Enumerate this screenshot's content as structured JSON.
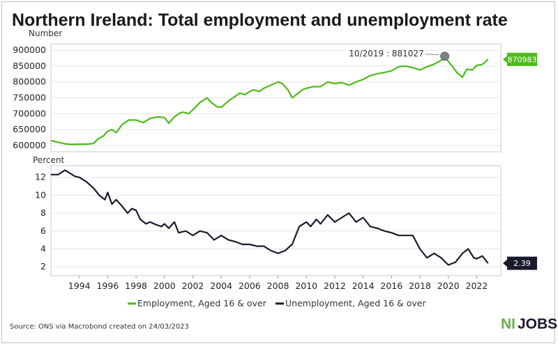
{
  "chart_data": {
    "type": "line",
    "title": "Northern Ireland: Total employment and unemployment rate",
    "source": "Source: ONS via Macrobond created on 24/03/2023",
    "brand": {
      "ni": "NI",
      "jobs": "JOBS",
      "ni_color": "#6ab04c",
      "jobs_color": "#1a1a2e"
    },
    "x_ticks": [
      "1994",
      "1996",
      "1998",
      "2000",
      "2002",
      "2004",
      "2006",
      "2008",
      "2010",
      "2012",
      "2014",
      "2016",
      "2018",
      "2020",
      "2022"
    ],
    "x_range": [
      1992.0,
      2023.7
    ],
    "panels": [
      {
        "unit_label": "Number",
        "ylim": [
          580000,
          920000
        ],
        "yticks": [
          "600000",
          "650000",
          "700000",
          "750000",
          "800000",
          "850000",
          "900000"
        ],
        "grid": true,
        "series": [
          {
            "name": "Employment, Aged 16 & over",
            "color": "#4cbb17",
            "x": [
              1992.0,
              1992.5,
              1993.0,
              1993.5,
              1994.0,
              1994.5,
              1995.0,
              1995.3,
              1995.7,
              1996.0,
              1996.3,
              1996.6,
              1997.0,
              1997.5,
              1998.0,
              1998.5,
              1999.0,
              1999.5,
              2000.0,
              2000.3,
              2000.7,
              2001.0,
              2001.3,
              2001.7,
              2002.0,
              2002.5,
              2003.0,
              2003.3,
              2003.7,
              2004.0,
              2004.5,
              2005.0,
              2005.3,
              2005.7,
              2006.0,
              2006.3,
              2006.7,
              2007.0,
              2007.5,
              2008.0,
              2008.3,
              2008.7,
              2009.0,
              2009.3,
              2009.7,
              2010.0,
              2010.5,
              2011.0,
              2011.5,
              2012.0,
              2012.5,
              2013.0,
              2013.5,
              2014.0,
              2014.5,
              2015.0,
              2015.5,
              2016.0,
              2016.5,
              2017.0,
              2017.5,
              2018.0,
              2018.5,
              2019.0,
              2019.5,
              2019.75,
              2020.0,
              2020.3,
              2020.6,
              2021.0,
              2021.3,
              2021.7,
              2022.0,
              2022.4,
              2022.8
            ],
            "values": [
              615000,
              610000,
              605000,
              603000,
              604000,
              604000,
              606000,
              620000,
              630000,
              645000,
              650000,
              640000,
              665000,
              680000,
              680000,
              672000,
              685000,
              690000,
              688000,
              670000,
              690000,
              700000,
              705000,
              700000,
              712000,
              735000,
              750000,
              735000,
              722000,
              720000,
              740000,
              755000,
              765000,
              760000,
              770000,
              775000,
              770000,
              780000,
              790000,
              800000,
              795000,
              775000,
              750000,
              760000,
              775000,
              780000,
              785000,
              785000,
              800000,
              795000,
              798000,
              790000,
              800000,
              808000,
              820000,
              826000,
              830000,
              835000,
              848000,
              850000,
              845000,
              838000,
              848000,
              856000,
              868000,
              881027,
              865000,
              848000,
              830000,
              815000,
              840000,
              838000,
              852000,
              855000,
              870983
            ]
          }
        ],
        "end_badge": {
          "text": "870983",
          "color": "#4cbb17"
        },
        "annotation": {
          "text": "10/2019 : 881027",
          "x": 2019.75,
          "y": 881027
        }
      },
      {
        "unit_label": "Percent",
        "ylim": [
          1.0,
          13.3
        ],
        "yticks": [
          "2",
          "4",
          "6",
          "8",
          "10",
          "12"
        ],
        "grid": true,
        "series": [
          {
            "name": "Unemployment, Aged 16 & over",
            "color": "#1a1a2e",
            "x": [
              1992.0,
              1992.5,
              1993.0,
              1993.3,
              1993.7,
              1994.0,
              1994.5,
              1995.0,
              1995.4,
              1995.8,
              1996.0,
              1996.3,
              1996.6,
              1997.0,
              1997.4,
              1997.7,
              1998.0,
              1998.3,
              1998.7,
              1999.0,
              1999.4,
              1999.8,
              2000.0,
              2000.3,
              2000.7,
              2001.0,
              2001.5,
              2002.0,
              2002.5,
              2003.0,
              2003.5,
              2004.0,
              2004.5,
              2005.0,
              2005.5,
              2006.0,
              2006.5,
              2007.0,
              2007.5,
              2008.0,
              2008.5,
              2009.0,
              2009.5,
              2010.0,
              2010.3,
              2010.7,
              2011.0,
              2011.5,
              2012.0,
              2012.5,
              2013.0,
              2013.5,
              2014.0,
              2014.5,
              2015.0,
              2015.5,
              2016.0,
              2016.5,
              2017.0,
              2017.5,
              2018.0,
              2018.5,
              2019.0,
              2019.5,
              2020.0,
              2020.5,
              2021.0,
              2021.4,
              2021.8,
              2022.0,
              2022.4,
              2022.8
            ],
            "values": [
              12.3,
              12.3,
              12.8,
              12.5,
              12.1,
              12.0,
              11.5,
              10.8,
              10.0,
              9.5,
              10.3,
              9.0,
              9.5,
              8.8,
              8.0,
              8.5,
              8.3,
              7.3,
              6.8,
              7.0,
              6.7,
              6.5,
              6.8,
              6.3,
              7.0,
              5.8,
              6.0,
              5.5,
              6.0,
              5.8,
              5.0,
              5.5,
              5.0,
              4.8,
              4.5,
              4.5,
              4.3,
              4.3,
              3.8,
              3.5,
              3.8,
              4.5,
              6.5,
              7.0,
              6.5,
              7.3,
              6.8,
              7.8,
              7.0,
              7.5,
              8.0,
              7.0,
              7.5,
              6.5,
              6.3,
              6.0,
              5.8,
              5.5,
              5.5,
              5.5,
              4.0,
              3.0,
              3.5,
              3.0,
              2.2,
              2.5,
              3.5,
              4.0,
              3.0,
              2.9,
              3.2,
              2.39
            ]
          }
        ],
        "end_badge": {
          "text": "2.39",
          "color": "#1a1a2e"
        }
      }
    ],
    "legend": [
      "Employment, Aged 16 & over",
      "Unemployment, Aged 16 & over"
    ]
  }
}
